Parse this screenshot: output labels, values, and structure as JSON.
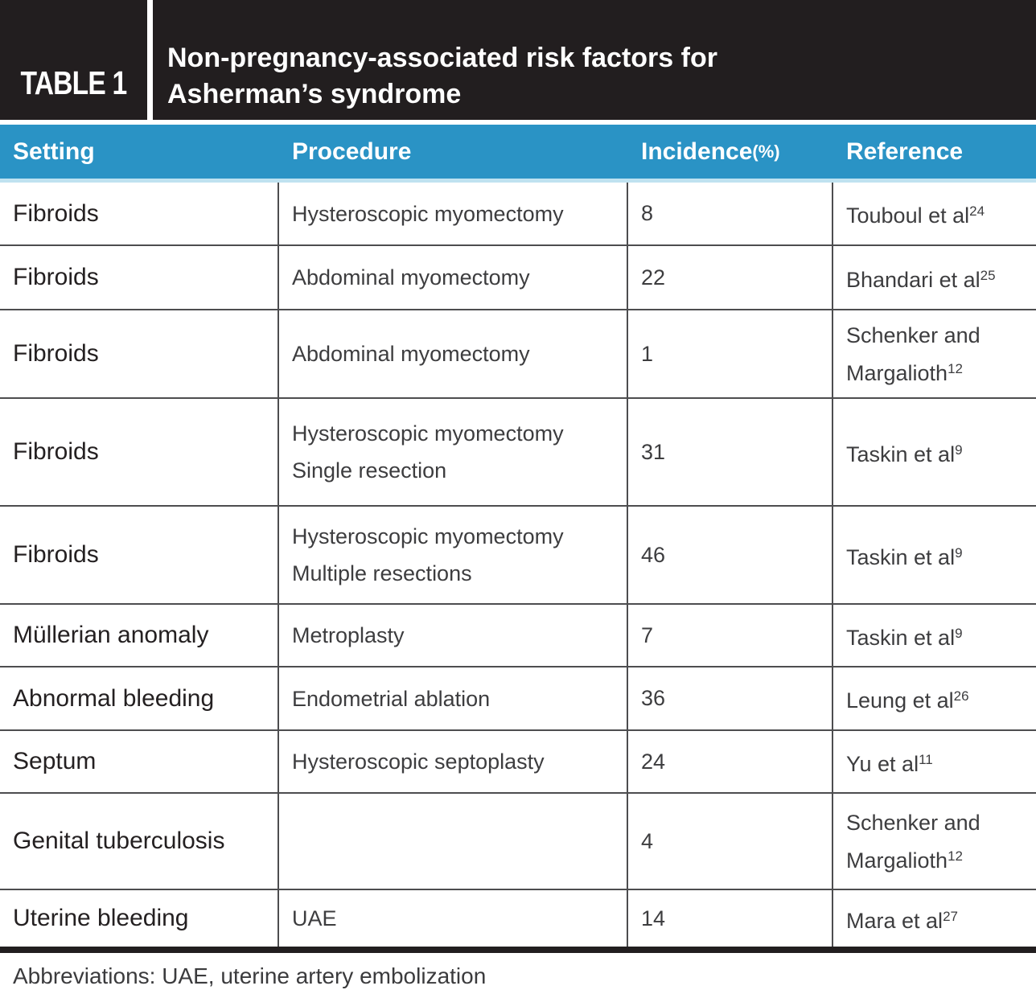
{
  "banner": {
    "label": "TABLE 1",
    "title_line1": "Non-pregnancy-associated risk factors for",
    "title_line2": "Asherman’s syndrome"
  },
  "columns": {
    "setting": "Setting",
    "procedure": "Procedure",
    "incidence": "Incidence",
    "incidence_unit": "(%)",
    "reference": "Reference"
  },
  "table": {
    "rows": [
      {
        "setting": "Fibroids",
        "procedure": "Hysteroscopic myomectomy",
        "incidence": "8",
        "reference": "Touboul et al",
        "reference_sup": "24"
      },
      {
        "setting": "Fibroids",
        "procedure": "Abdominal myomectomy",
        "incidence": "22",
        "reference": "Bhandari et al",
        "reference_sup": "25"
      },
      {
        "setting": "Fibroids",
        "procedure": "Abdominal myomectomy",
        "incidence": "1",
        "reference": "Schenker and Margalioth",
        "reference_sup": "12"
      },
      {
        "setting": "Fibroids",
        "procedure": "Hysteroscopic myomectomy",
        "procedure_line2": "Single resection",
        "incidence": "31",
        "reference": "Taskin et al",
        "reference_sup": "9"
      },
      {
        "setting": "Fibroids",
        "procedure": "Hysteroscopic myomectomy",
        "procedure_line2": "Multiple resections",
        "incidence": "46",
        "reference": "Taskin et al",
        "reference_sup": "9"
      },
      {
        "setting": "Müllerian anomaly",
        "procedure": "Metroplasty",
        "incidence": "7",
        "reference": "Taskin et al",
        "reference_sup": "9"
      },
      {
        "setting": "Abnormal bleeding",
        "procedure": "Endometrial ablation",
        "incidence": "36",
        "reference": "Leung et al",
        "reference_sup": "26"
      },
      {
        "setting": "Septum",
        "procedure": "Hysteroscopic septoplasty",
        "incidence": "24",
        "reference": "Yu et al",
        "reference_sup": "11"
      },
      {
        "setting": "Genital tuberculosis",
        "procedure": "",
        "incidence": "4",
        "reference": "Schenker and Margalioth",
        "reference_sup": "12"
      },
      {
        "setting": "Uterine bleeding",
        "procedure": "UAE",
        "incidence": "14",
        "reference": "Mara et al",
        "reference_sup": "27"
      }
    ]
  },
  "footnote": "Abbreviations: UAE, uterine artery embolization",
  "colors": {
    "banner_black": "#221e1f",
    "header_blue": "#2a93c5",
    "light_blue_strip": "#bfe2f0",
    "divider_gray": "#4d4d4f"
  }
}
